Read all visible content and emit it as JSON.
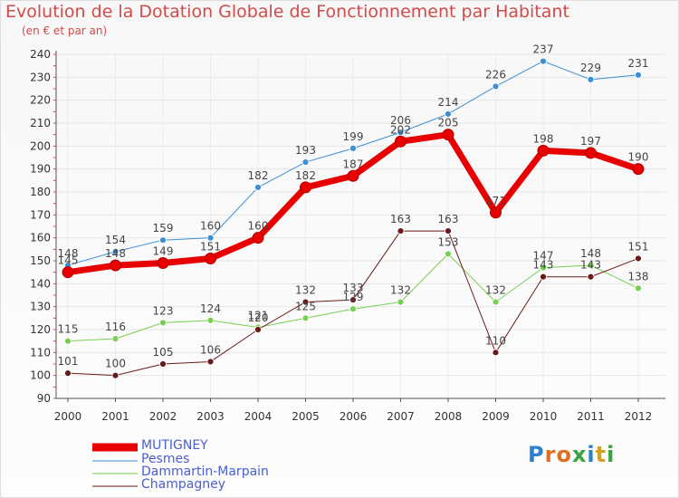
{
  "header": {
    "title": "Evolution de la Dotation Globale de Fonctionnement par Habitant",
    "subtitle": "(en € et par an)"
  },
  "chart_data": {
    "type": "line",
    "title": "Evolution de la Dotation Globale de Fonctionnement par Habitant",
    "subtitle": "(en € et par an)",
    "xlabel": "",
    "ylabel": "",
    "x": [
      "2000",
      "2001",
      "2002",
      "2003",
      "2004",
      "2005",
      "2006",
      "2007",
      "2008",
      "2009",
      "2010",
      "2011",
      "2012"
    ],
    "ylim": [
      90,
      240
    ],
    "yticks": [
      90,
      100,
      110,
      120,
      130,
      140,
      150,
      160,
      170,
      180,
      190,
      200,
      210,
      220,
      230,
      240
    ],
    "grid": true,
    "legend_position": "bottom-left",
    "series": [
      {
        "name": "MUTIGNEY",
        "color": "#e80000",
        "values": [
          145,
          148,
          149,
          151,
          160,
          182,
          187,
          202,
          205,
          171,
          198,
          197,
          190
        ]
      },
      {
        "name": "Pesmes",
        "color": "#3d8ed4",
        "values": [
          148,
          154,
          159,
          160,
          182,
          193,
          199,
          206,
          214,
          226,
          237,
          229,
          231
        ]
      },
      {
        "name": "Dammartin-Marpain",
        "color": "#78d050",
        "values": [
          115,
          116,
          123,
          124,
          121,
          125,
          129,
          132,
          153,
          132,
          147,
          148,
          138
        ]
      },
      {
        "name": "Champagney",
        "color": "#6b1a1a",
        "values": [
          101,
          100,
          105,
          106,
          120,
          132,
          133,
          163,
          163,
          110,
          143,
          143,
          151
        ]
      }
    ]
  },
  "logo": {
    "text": "Proxiti",
    "letters": [
      "P",
      "r",
      "o",
      "x",
      "i",
      "t",
      "i"
    ],
    "colors": [
      "#2e7fd0",
      "#e07020",
      "#e07020",
      "#3aa040",
      "#2e7fd0",
      "#d4a020",
      "#3aa040"
    ]
  }
}
